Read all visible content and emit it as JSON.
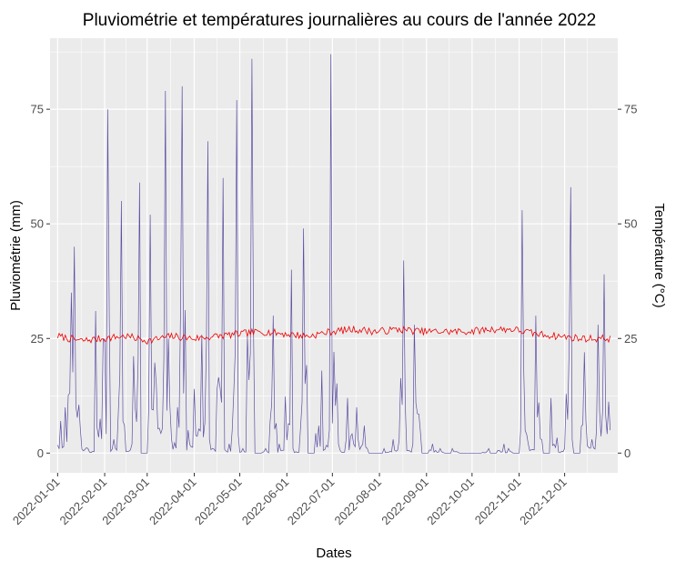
{
  "chart_data": {
    "type": "line",
    "title": "Pluviométrie et températures journalières au cours de l'année 2022",
    "xlabel": "Dates",
    "ylabel": "Pluviométrie (mm)",
    "ylabel_right": "Température (°C)",
    "x_range": [
      "2021-12-27",
      "2023-01-05"
    ],
    "ylim": [
      -4.3,
      90.5
    ],
    "y_ticks": [
      0,
      25,
      50,
      75
    ],
    "x_tick_labels": [
      "2022-01-01",
      "2022-02-01",
      "2022-03-01",
      "2022-04-01",
      "2022-05-01",
      "2022-06-01",
      "2022-07-01",
      "2022-08-01",
      "2022-09-01",
      "2022-10-01",
      "2022-11-01",
      "2022-12-01"
    ],
    "series": [
      {
        "color": "#5e4fa2",
        "x": [
          "2022-01-01",
          "2022-01-06",
          "2022-01-11",
          "2022-01-16",
          "2022-01-21",
          "2022-01-26",
          "2022-01-31",
          "2022-02-05",
          "2022-02-10",
          "2022-02-15",
          "2022-02-20",
          "2022-02-25",
          "2022-03-02",
          "2022-03-07",
          "2022-03-12",
          "2022-03-17",
          "2022-03-22",
          "2022-03-27",
          "2022-04-01",
          "2022-04-06",
          "2022-04-11",
          "2022-04-16",
          "2022-04-21",
          "2022-04-26",
          "2022-05-01",
          "2022-05-06",
          "2022-05-11",
          "2022-05-16",
          "2022-05-21",
          "2022-05-26",
          "2022-05-31",
          "2022-06-05",
          "2022-06-10",
          "2022-06-15",
          "2022-06-20",
          "2022-06-25",
          "2022-06-30",
          "2022-07-05",
          "2022-07-10",
          "2022-07-15",
          "2022-07-20",
          "2022-07-25",
          "2022-07-30",
          "2022-08-04",
          "2022-08-09",
          "2022-08-14",
          "2022-08-19",
          "2022-08-24",
          "2022-08-29",
          "2022-09-03",
          "2022-09-08",
          "2022-09-13",
          "2022-09-18",
          "2022-09-23",
          "2022-09-28",
          "2022-10-03",
          "2022-10-08",
          "2022-10-13",
          "2022-10-18",
          "2022-10-23",
          "2022-10-28",
          "2022-11-02",
          "2022-11-07",
          "2022-11-12",
          "2022-11-17",
          "2022-11-22",
          "2022-11-27",
          "2022-12-02",
          "2022-12-07",
          "2022-12-12",
          "2022-12-17",
          "2022-12-22",
          "2022-12-27",
          "2022-12-31"
        ],
        "values": [
          7,
          35,
          45,
          5,
          1,
          31,
          75,
          3,
          55,
          2,
          59,
          0,
          52,
          15,
          79,
          10,
          80,
          5,
          14,
          68,
          3,
          60,
          2,
          77,
          1,
          86,
          0,
          1,
          30,
          2,
          40,
          1,
          49,
          0,
          18,
          5,
          87,
          2,
          12,
          10,
          6,
          0,
          0,
          1,
          3,
          42,
          2,
          28,
          0,
          2,
          1,
          0,
          1,
          0,
          0,
          0,
          1,
          0,
          2,
          1,
          0,
          53,
          2,
          30,
          0,
          12,
          1,
          58,
          0,
          22,
          3,
          28,
          39,
          5
        ]
      },
      {
        "color": "#ee0000",
        "x": [
          "2022-01-01",
          "2022-01-16",
          "2022-01-31",
          "2022-02-15",
          "2022-03-02",
          "2022-03-17",
          "2022-04-01",
          "2022-04-16",
          "2022-05-01",
          "2022-05-16",
          "2022-05-31",
          "2022-06-15",
          "2022-06-30",
          "2022-07-15",
          "2022-07-30",
          "2022-08-14",
          "2022-08-29",
          "2022-09-13",
          "2022-09-28",
          "2022-10-13",
          "2022-10-28",
          "2022-11-12",
          "2022-11-27",
          "2022-12-12",
          "2022-12-31"
        ],
        "values": [
          25.5,
          24.5,
          25,
          25.5,
          24.5,
          25.5,
          25,
          25.5,
          26,
          26.5,
          26,
          25.5,
          26.5,
          27,
          26.5,
          27,
          26.5,
          26.5,
          26.5,
          27,
          27,
          26,
          25.5,
          25,
          25
        ]
      }
    ]
  }
}
